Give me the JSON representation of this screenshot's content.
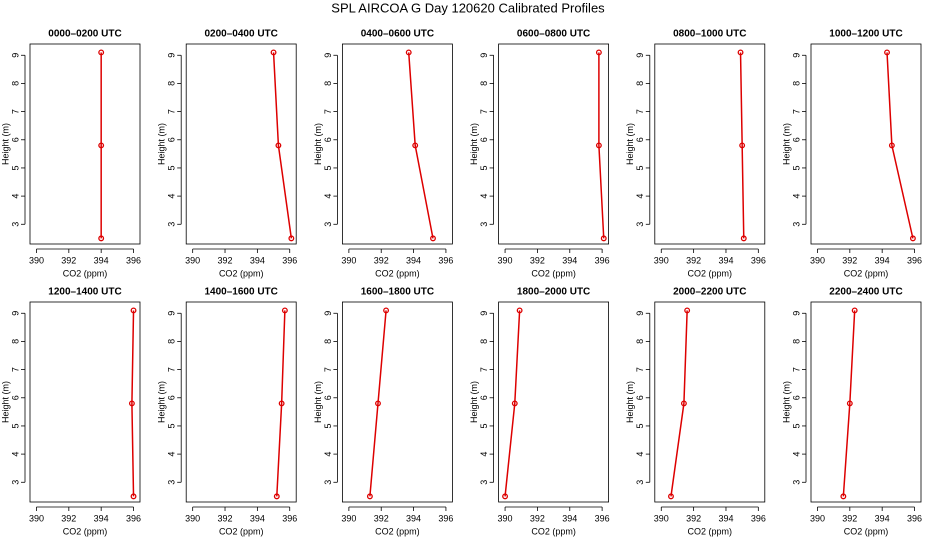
{
  "title": "SPL AIRCOA G  Day 120620  Calibrated Profiles",
  "chart_data": [
    {
      "type": "line",
      "title": "0000–0200 UTC",
      "xlabel": "CO2 (ppm)",
      "ylabel": "Height (m)",
      "color": "#dd0000",
      "x": [
        394.0,
        394.0,
        394.0
      ],
      "y": [
        2.5,
        5.8,
        9.1
      ],
      "xlim": [
        389.6,
        396.4
      ],
      "ylim": [
        2.3,
        9.4
      ],
      "xticks": [
        390,
        392,
        394,
        396
      ],
      "yticks": [
        3,
        4,
        5,
        6,
        7,
        8,
        9
      ]
    },
    {
      "type": "line",
      "title": "0200–0400 UTC",
      "xlabel": "CO2 (ppm)",
      "ylabel": "Height (m)",
      "color": "#dd0000",
      "x": [
        396.1,
        395.3,
        395.0
      ],
      "y": [
        2.5,
        5.8,
        9.1
      ],
      "xlim": [
        389.6,
        396.4
      ],
      "ylim": [
        2.3,
        9.4
      ],
      "xticks": [
        390,
        392,
        394,
        396
      ],
      "yticks": [
        3,
        4,
        5,
        6,
        7,
        8,
        9
      ]
    },
    {
      "type": "line",
      "title": "0400–0600 UTC",
      "xlabel": "CO2 (ppm)",
      "ylabel": "Height (m)",
      "color": "#dd0000",
      "x": [
        395.2,
        394.1,
        393.7
      ],
      "y": [
        2.5,
        5.8,
        9.1
      ],
      "xlim": [
        389.6,
        396.4
      ],
      "ylim": [
        2.3,
        9.4
      ],
      "xticks": [
        390,
        392,
        394,
        396
      ],
      "yticks": [
        3,
        4,
        5,
        6,
        7,
        8,
        9
      ]
    },
    {
      "type": "line",
      "title": "0600–0800 UTC",
      "xlabel": "CO2 (ppm)",
      "ylabel": "Height (m)",
      "color": "#dd0000",
      "x": [
        396.1,
        395.8,
        395.8
      ],
      "y": [
        2.5,
        5.8,
        9.1
      ],
      "xlim": [
        389.6,
        396.4
      ],
      "ylim": [
        2.3,
        9.4
      ],
      "xticks": [
        390,
        392,
        394,
        396
      ],
      "yticks": [
        3,
        4,
        5,
        6,
        7,
        8,
        9
      ]
    },
    {
      "type": "line",
      "title": "0800–1000 UTC",
      "xlabel": "CO2 (ppm)",
      "ylabel": "Height (m)",
      "color": "#dd0000",
      "x": [
        395.1,
        395.0,
        394.9
      ],
      "y": [
        2.5,
        5.8,
        9.1
      ],
      "xlim": [
        389.6,
        396.4
      ],
      "ylim": [
        2.3,
        9.4
      ],
      "xticks": [
        390,
        392,
        394,
        396
      ],
      "yticks": [
        3,
        4,
        5,
        6,
        7,
        8,
        9
      ]
    },
    {
      "type": "line",
      "title": "1000–1200 UTC",
      "xlabel": "CO2 (ppm)",
      "ylabel": "Height (m)",
      "color": "#dd0000",
      "x": [
        395.9,
        394.6,
        394.3
      ],
      "y": [
        2.5,
        5.8,
        9.1
      ],
      "xlim": [
        389.6,
        396.4
      ],
      "ylim": [
        2.3,
        9.4
      ],
      "xticks": [
        390,
        392,
        394,
        396
      ],
      "yticks": [
        3,
        4,
        5,
        6,
        7,
        8,
        9
      ]
    },
    {
      "type": "line",
      "title": "1200–1400 UTC",
      "xlabel": "CO2 (ppm)",
      "ylabel": "Height (m)",
      "color": "#dd0000",
      "x": [
        396.0,
        395.9,
        396.0
      ],
      "y": [
        2.5,
        5.8,
        9.1
      ],
      "xlim": [
        389.6,
        396.4
      ],
      "ylim": [
        2.3,
        9.4
      ],
      "xticks": [
        390,
        392,
        394,
        396
      ],
      "yticks": [
        3,
        4,
        5,
        6,
        7,
        8,
        9
      ]
    },
    {
      "type": "line",
      "title": "1400–1600 UTC",
      "xlabel": "CO2 (ppm)",
      "ylabel": "Height (m)",
      "color": "#dd0000",
      "x": [
        395.2,
        395.5,
        395.7
      ],
      "y": [
        2.5,
        5.8,
        9.1
      ],
      "xlim": [
        389.6,
        396.4
      ],
      "ylim": [
        2.3,
        9.4
      ],
      "xticks": [
        390,
        392,
        394,
        396
      ],
      "yticks": [
        3,
        4,
        5,
        6,
        7,
        8,
        9
      ]
    },
    {
      "type": "line",
      "title": "1600–1800 UTC",
      "xlabel": "CO2 (ppm)",
      "ylabel": "Height (m)",
      "color": "#dd0000",
      "x": [
        391.3,
        391.8,
        392.3
      ],
      "y": [
        2.5,
        5.8,
        9.1
      ],
      "xlim": [
        389.6,
        396.4
      ],
      "ylim": [
        2.3,
        9.4
      ],
      "xticks": [
        390,
        392,
        394,
        396
      ],
      "yticks": [
        3,
        4,
        5,
        6,
        7,
        8,
        9
      ]
    },
    {
      "type": "line",
      "title": "1800–2000 UTC",
      "xlabel": "CO2 (ppm)",
      "ylabel": "Height (m)",
      "color": "#dd0000",
      "x": [
        390.0,
        390.6,
        390.9
      ],
      "y": [
        2.5,
        5.8,
        9.1
      ],
      "xlim": [
        389.6,
        396.4
      ],
      "ylim": [
        2.3,
        9.4
      ],
      "xticks": [
        390,
        392,
        394,
        396
      ],
      "yticks": [
        3,
        4,
        5,
        6,
        7,
        8,
        9
      ]
    },
    {
      "type": "line",
      "title": "2000–2200 UTC",
      "xlabel": "CO2 (ppm)",
      "ylabel": "Height (m)",
      "color": "#dd0000",
      "x": [
        390.6,
        391.4,
        391.6
      ],
      "y": [
        2.5,
        5.8,
        9.1
      ],
      "xlim": [
        389.6,
        396.4
      ],
      "ylim": [
        2.3,
        9.4
      ],
      "xticks": [
        390,
        392,
        394,
        396
      ],
      "yticks": [
        3,
        4,
        5,
        6,
        7,
        8,
        9
      ]
    },
    {
      "type": "line",
      "title": "2200–2400 UTC",
      "xlabel": "CO2 (ppm)",
      "ylabel": "Height (m)",
      "color": "#dd0000",
      "x": [
        391.6,
        392.0,
        392.3
      ],
      "y": [
        2.5,
        5.8,
        9.1
      ],
      "xlim": [
        389.6,
        396.4
      ],
      "ylim": [
        2.3,
        9.4
      ],
      "xticks": [
        390,
        392,
        394,
        396
      ],
      "yticks": [
        3,
        4,
        5,
        6,
        7,
        8,
        9
      ]
    }
  ]
}
